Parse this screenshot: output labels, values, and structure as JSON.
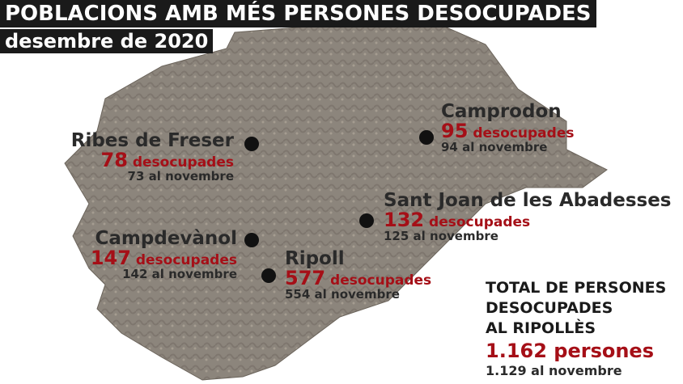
{
  "header": {
    "title": "POBLACIONS AMB MÉS PERSONES DESOCUPADES",
    "subtitle": "desembre de 2020"
  },
  "towns": [
    {
      "name": "Ribes de Freser",
      "value": "78",
      "unit": "desocupades",
      "previous": "73 al novembre"
    },
    {
      "name": "Camprodon",
      "value": "95",
      "unit": "desocupades",
      "previous": "94 al novembre"
    },
    {
      "name": "Sant Joan de les Abadesses",
      "value": "132",
      "unit": "desocupades",
      "previous": "125 al novembre"
    },
    {
      "name": "Campdevànol",
      "value": "147",
      "unit": "desocupades",
      "previous": "142 al novembre"
    },
    {
      "name": "Ripoll",
      "value": "577",
      "unit": "desocupades",
      "previous": "554 al novembre"
    }
  ],
  "total": {
    "lines": [
      "TOTAL DE PERSONES",
      "DESOCUPADES",
      "AL RIPOLLÈS"
    ],
    "value": "1.162 persones",
    "previous": "1.129 al novembre"
  }
}
